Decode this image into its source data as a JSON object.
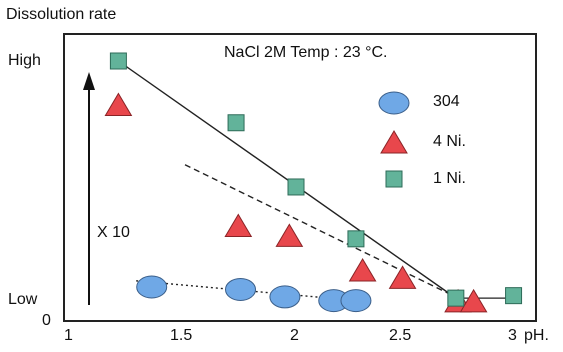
{
  "chart_data": {
    "type": "scatter",
    "title": "",
    "annotation": "NaCl 2M Temp : 23 °C.",
    "xlabel": "pH.",
    "ylabel": "Dissolution rate",
    "xlim": [
      1,
      3
    ],
    "ylim": [
      0,
      100
    ],
    "x_ticks": [
      "1",
      "1.5",
      "2",
      "2.5",
      "3"
    ],
    "y_tick_labels": {
      "high": "High",
      "low": "Low",
      "zero": "0"
    },
    "arrow_label": "X 10",
    "grid": false,
    "legend_placement": "right",
    "series": [
      {
        "name": "304",
        "marker": "ellipse",
        "color": "#6fa8e6",
        "points": [
          [
            1.35,
            8.5
          ],
          [
            1.75,
            7.5
          ],
          [
            1.95,
            4.5
          ],
          [
            2.17,
            3
          ],
          [
            2.27,
            3
          ]
        ]
      },
      {
        "name": "4 Ni.",
        "marker": "triangle",
        "color": "#e8474c",
        "points": [
          [
            1.2,
            82
          ],
          [
            1.74,
            33
          ],
          [
            1.97,
            29
          ],
          [
            2.3,
            15
          ],
          [
            2.48,
            12
          ],
          [
            2.73,
            2.5
          ],
          [
            2.8,
            2.5
          ]
        ]
      },
      {
        "name": "1 Ni.",
        "marker": "square",
        "color": "#62b39a",
        "points": [
          [
            1.2,
            100
          ],
          [
            1.73,
            75
          ],
          [
            2.0,
            49
          ],
          [
            2.27,
            28
          ],
          [
            2.72,
            4
          ],
          [
            2.98,
            5
          ]
        ]
      }
    ],
    "lines": [
      {
        "style": "solid",
        "points": [
          [
            1.2,
            100
          ],
          [
            2.72,
            4
          ]
        ]
      },
      {
        "style": "dashed",
        "points": [
          [
            1.5,
            58
          ],
          [
            2.73,
            4
          ]
        ]
      },
      {
        "style": "dotted",
        "points": [
          [
            1.28,
            11
          ],
          [
            2.15,
            4
          ]
        ]
      },
      {
        "style": "thin",
        "points": [
          [
            2.72,
            4
          ],
          [
            2.72,
            4
          ]
        ]
      }
    ]
  }
}
